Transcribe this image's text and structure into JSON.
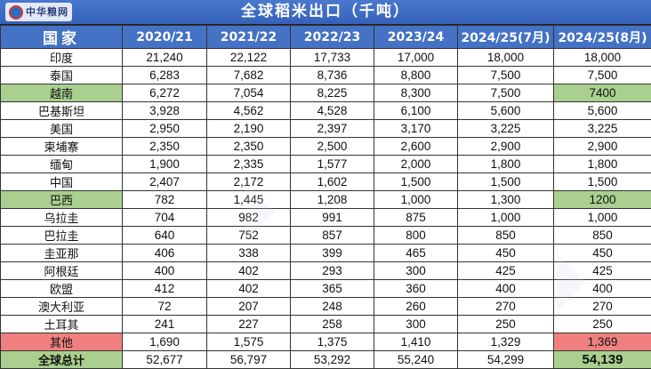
{
  "title": "全球稻米出口（千吨）",
  "logo_text": "中华粮网",
  "colors": {
    "header": "#4472c4",
    "highlight_green": "#a9d08e",
    "highlight_red": "#f08080"
  },
  "chart_data": {
    "type": "table",
    "title": "全球稻米出口（千吨）",
    "columns": [
      "国家",
      "2020/21",
      "2021/22",
      "2022/23",
      "2023/24",
      "2024/25(7月)",
      "2024/25(8月)"
    ],
    "rows": [
      {
        "country": "印度",
        "values": [
          "21,240",
          "22,122",
          "17,733",
          "17,000",
          "18,000",
          "18,000"
        ]
      },
      {
        "country": "泰国",
        "values": [
          "6,283",
          "7,682",
          "8,736",
          "8,800",
          "7,500",
          "7,500"
        ]
      },
      {
        "country": "越南",
        "values": [
          "6,272",
          "7,054",
          "8,225",
          "8,300",
          "7,500",
          "7400"
        ],
        "highlight": "green"
      },
      {
        "country": "巴基斯坦",
        "values": [
          "3,928",
          "4,562",
          "4,528",
          "6,100",
          "5,600",
          "5,600"
        ]
      },
      {
        "country": "美国",
        "values": [
          "2,950",
          "2,190",
          "2,397",
          "3,170",
          "3,225",
          "3,225"
        ]
      },
      {
        "country": "柬埔寨",
        "values": [
          "2,350",
          "2,350",
          "2,500",
          "2,600",
          "2,900",
          "2,900"
        ]
      },
      {
        "country": "缅甸",
        "values": [
          "1,900",
          "2,335",
          "1,577",
          "2,000",
          "1,800",
          "1,800"
        ]
      },
      {
        "country": "中国",
        "values": [
          "2,407",
          "2,172",
          "1,602",
          "1,500",
          "1,500",
          "1,500"
        ]
      },
      {
        "country": "巴西",
        "values": [
          "782",
          "1,445",
          "1,208",
          "1,000",
          "1,300",
          "1200"
        ],
        "highlight": "green"
      },
      {
        "country": "乌拉圭",
        "values": [
          "704",
          "982",
          "991",
          "875",
          "1,000",
          "1,000"
        ]
      },
      {
        "country": "巴拉圭",
        "values": [
          "640",
          "752",
          "857",
          "800",
          "850",
          "850"
        ]
      },
      {
        "country": "圭亚那",
        "values": [
          "406",
          "338",
          "399",
          "465",
          "450",
          "450"
        ]
      },
      {
        "country": "阿根廷",
        "values": [
          "400",
          "402",
          "293",
          "300",
          "425",
          "425"
        ]
      },
      {
        "country": "欧盟",
        "values": [
          "412",
          "402",
          "365",
          "360",
          "400",
          "400"
        ]
      },
      {
        "country": "澳大利亚",
        "values": [
          "72",
          "207",
          "248",
          "260",
          "270",
          "270"
        ]
      },
      {
        "country": "土耳其",
        "values": [
          "241",
          "227",
          "258",
          "300",
          "250",
          "250"
        ]
      },
      {
        "country": "其他",
        "values": [
          "1,690",
          "1,575",
          "1,375",
          "1,410",
          "1,329",
          "1,369"
        ],
        "highlight": "red"
      },
      {
        "country": "全球总计",
        "values": [
          "52,677",
          "56,797",
          "53,292",
          "55,240",
          "54,299",
          "54,139"
        ],
        "highlight": "green",
        "bold": true
      }
    ]
  }
}
